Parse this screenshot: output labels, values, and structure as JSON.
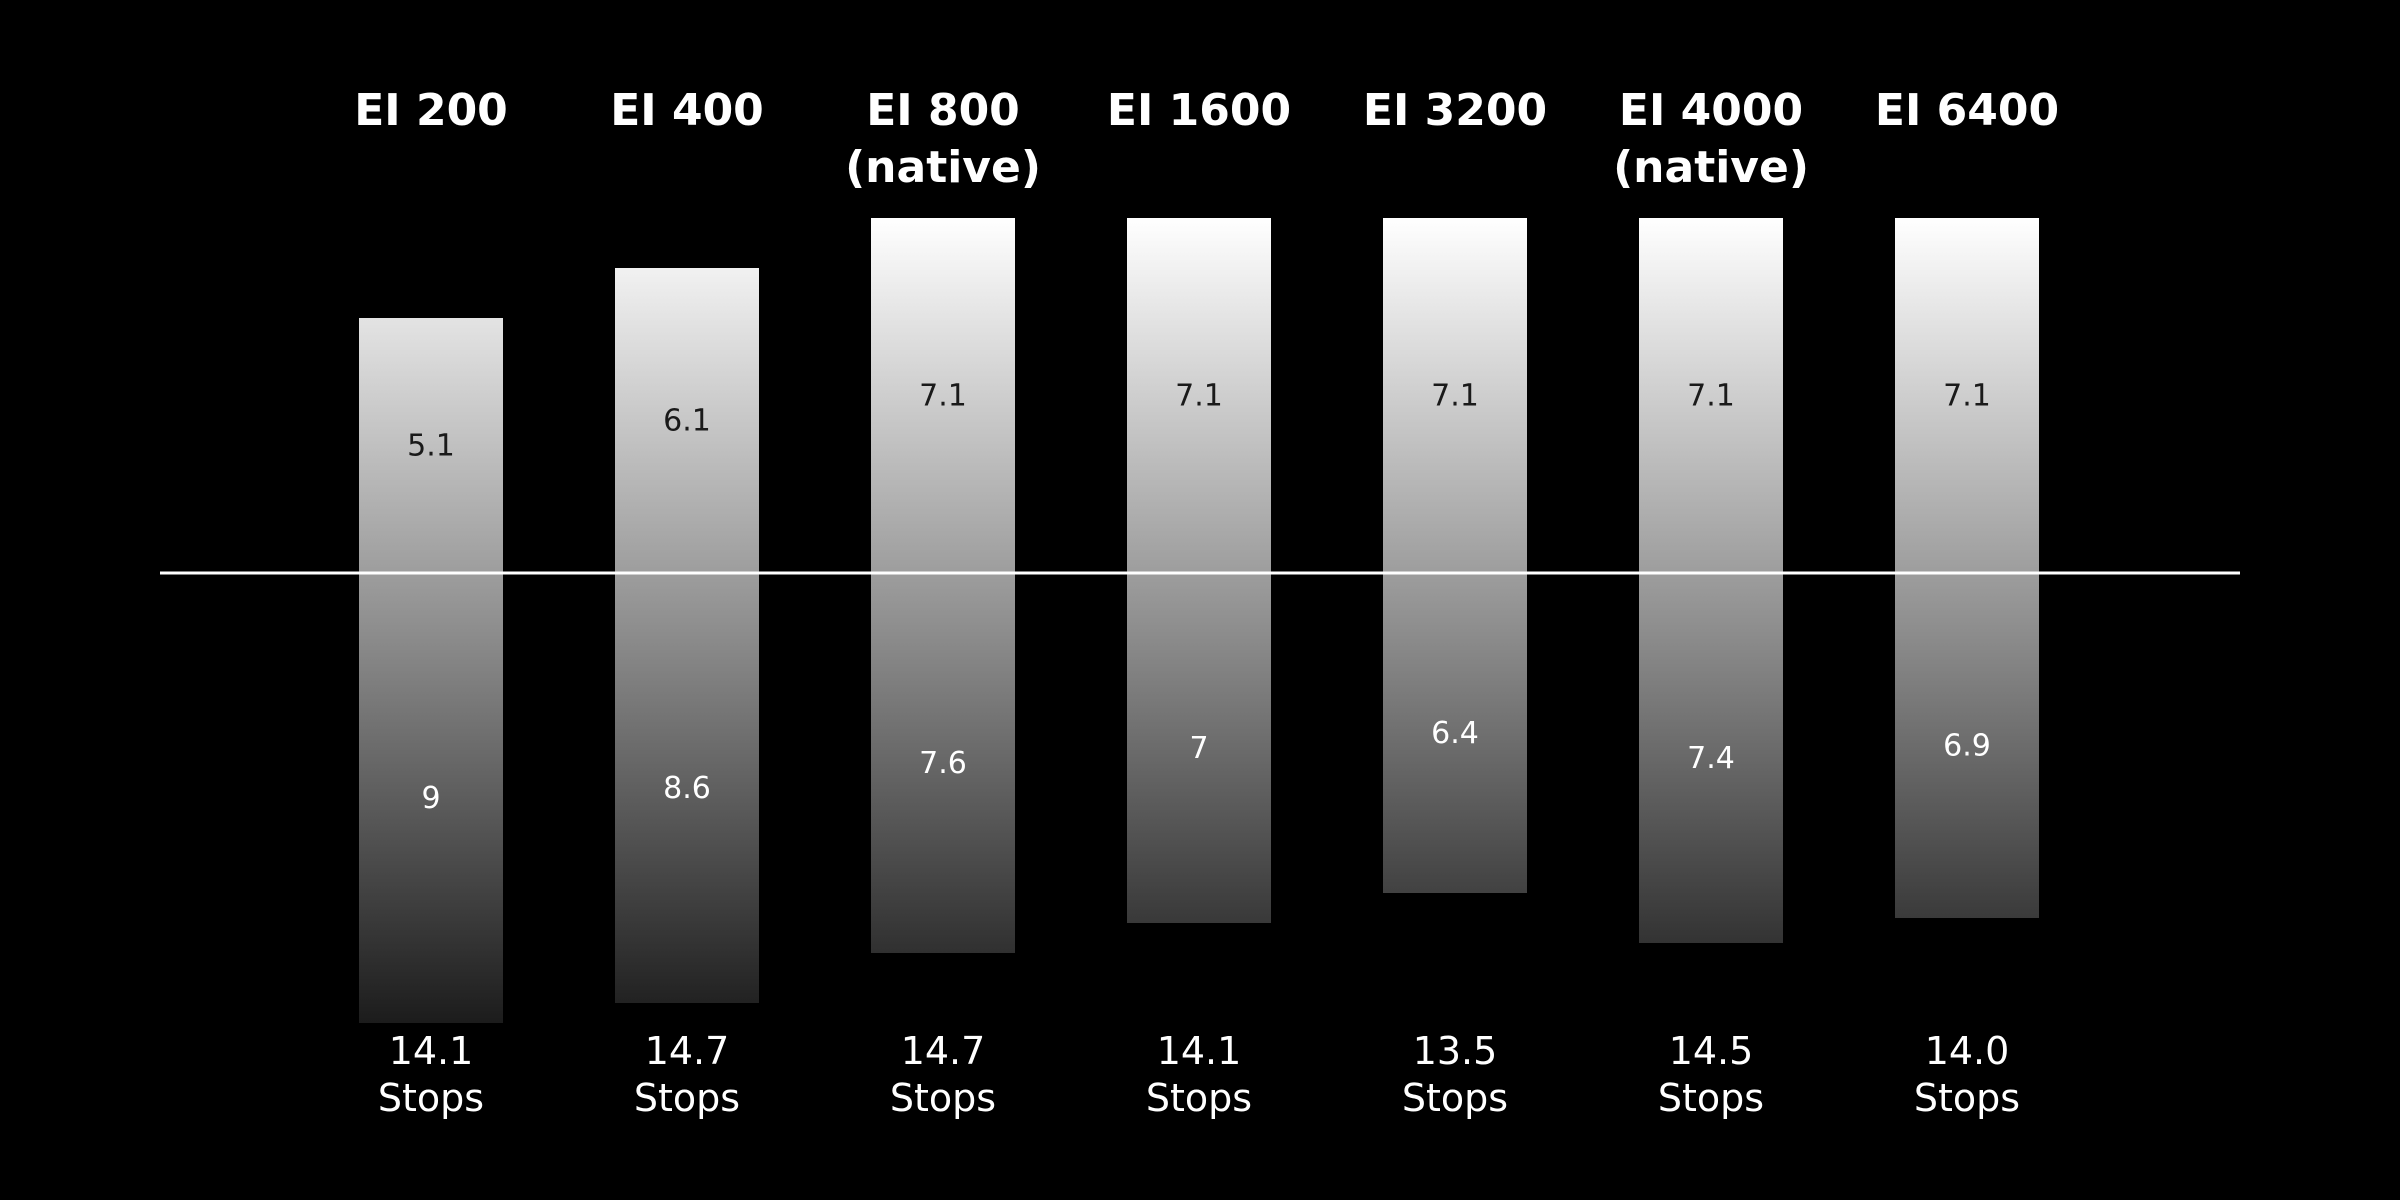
{
  "chart_data": {
    "type": "bar",
    "subtype": "diverging-stacked",
    "title": "",
    "xlabel": "",
    "ylabel": "",
    "unit": "Stops",
    "legend": "none",
    "grid": false,
    "categories": [
      [
        "EI 200"
      ],
      [
        "EI 400"
      ],
      [
        "EI 800",
        "(native)"
      ],
      [
        "EI 1600"
      ],
      [
        "EI 3200"
      ],
      [
        "EI 4000",
        "(native)"
      ],
      [
        "EI 6400"
      ]
    ],
    "above": [
      5.1,
      6.1,
      7.1,
      7.1,
      7.1,
      7.1,
      7.1
    ],
    "above_labels": [
      "5.1",
      "6.1",
      "7.1",
      "7.1",
      "7.1",
      "7.1",
      "7.1"
    ],
    "below": [
      9,
      8.6,
      7.6,
      7,
      6.4,
      7.4,
      6.9
    ],
    "below_labels": [
      "9",
      "8.6",
      "7.6",
      "7",
      "6.4",
      "7.4",
      "6.9"
    ],
    "totals": [
      "14.1",
      "14.7",
      "14.7",
      "14.1",
      "13.5",
      "14.5",
      "14.0"
    ],
    "baseline_value": 0,
    "colors": {
      "background": "#000000",
      "bar_top": "#ffffff",
      "bar_middle": "#909090",
      "bar_bottom": "#1c1c1c",
      "baseline": "#ffffff",
      "label_dark": "#1a1a1a",
      "label_light": "#ffffff"
    }
  }
}
